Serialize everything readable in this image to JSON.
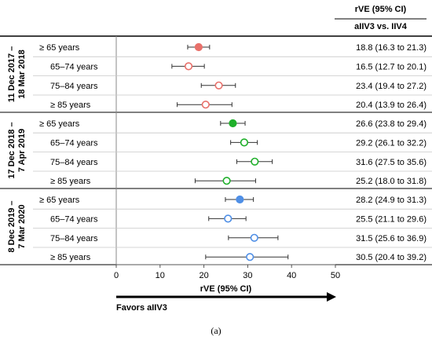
{
  "header": {
    "col1": "rVE (95% CI)",
    "col2": "aIIV3 vs. IIV4"
  },
  "caption": "(a)",
  "arrow_label": "Favors aIIV3",
  "chart_data": {
    "type": "forest",
    "xlabel": "rVE (95% CI)",
    "xlim": [
      0,
      50
    ],
    "xticks": [
      0,
      10,
      20,
      30,
      40,
      50
    ],
    "groups": [
      {
        "label": "11 Dec 2017 – 18 Mar 2018",
        "label_lines": [
          "11 Dec 2017 –",
          "18 Mar 2018"
        ],
        "color": "#e8706a",
        "rows": [
          {
            "label": "≥ 65 years",
            "est": 18.8,
            "lo": 16.3,
            "hi": 21.3,
            "filled": true,
            "text": "18.8 (16.3 to 21.3)"
          },
          {
            "label": "65–74 years",
            "est": 16.5,
            "lo": 12.7,
            "hi": 20.1,
            "filled": false,
            "text": "16.5 (12.7 to 20.1)"
          },
          {
            "label": "75–84 years",
            "est": 23.4,
            "lo": 19.4,
            "hi": 27.2,
            "filled": false,
            "text": "23.4 (19.4 to 27.2)"
          },
          {
            "label": "≥ 85 years",
            "est": 20.4,
            "lo": 13.9,
            "hi": 26.4,
            "filled": false,
            "text": "20.4 (13.9 to 26.4)"
          }
        ]
      },
      {
        "label": "17 Dec 2018 – 7 Apr 2019",
        "label_lines": [
          "17 Dec 2018 –",
          "7 Apr 2019"
        ],
        "color": "#1fb02a",
        "rows": [
          {
            "label": "≥ 65 years",
            "est": 26.6,
            "lo": 23.8,
            "hi": 29.4,
            "filled": true,
            "text": "26.6 (23.8 to 29.4)"
          },
          {
            "label": "65–74 years",
            "est": 29.2,
            "lo": 26.1,
            "hi": 32.2,
            "filled": false,
            "text": "29.2 (26.1 to 32.2)"
          },
          {
            "label": "75–84 years",
            "est": 31.6,
            "lo": 27.5,
            "hi": 35.6,
            "filled": false,
            "text": "31.6 (27.5 to 35.6)"
          },
          {
            "label": "≥ 85 years",
            "est": 25.2,
            "lo": 18.0,
            "hi": 31.8,
            "filled": false,
            "text": "25.2 (18.0 to 31.8)"
          }
        ]
      },
      {
        "label": "8 Dec 2019 – 7 Mar 2020",
        "label_lines": [
          "8 Dec 2019 –",
          "7 Mar 2020"
        ],
        "color": "#4f8fe6",
        "rows": [
          {
            "label": "≥ 65 years",
            "est": 28.2,
            "lo": 24.9,
            "hi": 31.3,
            "filled": true,
            "text": "28.2 (24.9 to 31.3)"
          },
          {
            "label": "65–74 years",
            "est": 25.5,
            "lo": 21.1,
            "hi": 29.6,
            "filled": false,
            "text": "25.5 (21.1 to 29.6)"
          },
          {
            "label": "75–84 years",
            "est": 31.5,
            "lo": 25.6,
            "hi": 36.9,
            "filled": false,
            "text": "31.5 (25.6 to 36.9)"
          },
          {
            "label": "≥ 85 years",
            "est": 30.5,
            "lo": 20.4,
            "hi": 39.2,
            "filled": false,
            "text": "30.5 (20.4 to 39.2)"
          }
        ]
      }
    ]
  }
}
